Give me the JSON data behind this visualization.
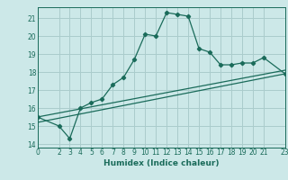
{
  "xlabel": "Humidex (Indice chaleur)",
  "bg_color": "#cce8e8",
  "grid_color": "#aacccc",
  "line_color": "#1a6b5a",
  "xlim": [
    0,
    23
  ],
  "ylim": [
    13.8,
    21.6
  ],
  "xticks": [
    0,
    2,
    3,
    4,
    5,
    6,
    7,
    8,
    9,
    10,
    11,
    12,
    13,
    14,
    15,
    16,
    17,
    18,
    19,
    20,
    21,
    23
  ],
  "yticks": [
    14,
    15,
    16,
    17,
    18,
    19,
    20,
    21
  ],
  "line1_x": [
    0,
    2,
    3,
    4,
    5,
    6,
    7,
    8,
    9,
    10,
    11,
    12,
    13,
    14,
    15,
    16,
    17,
    18,
    19,
    20,
    21,
    23
  ],
  "line1_y": [
    15.5,
    15.0,
    14.3,
    16.0,
    16.3,
    16.5,
    17.3,
    17.7,
    18.7,
    20.1,
    20.0,
    21.3,
    21.2,
    21.1,
    19.3,
    19.1,
    18.4,
    18.4,
    18.5,
    18.5,
    18.8,
    17.9
  ],
  "line2_x": [
    0,
    23
  ],
  "line2_y": [
    15.5,
    18.1
  ],
  "line3_x": [
    0,
    23
  ],
  "line3_y": [
    15.2,
    17.9
  ]
}
